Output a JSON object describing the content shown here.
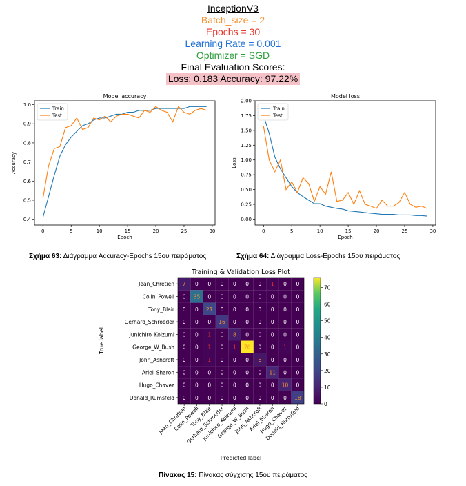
{
  "header": {
    "title": "InceptionV3",
    "batch": "Batch_size = 2",
    "epochs": "Epochs = 30",
    "lr": "Learning Rate = 0.001",
    "optimizer": "Optimizer = SGD",
    "final": "Final Evaluation Scores:",
    "scores": "Loss: 0.183  Accuracy: 97.22%",
    "colors": {
      "batch": "#f5922f",
      "epochs": "#e8332a",
      "lr": "#1f6fd6",
      "optimizer": "#2a9e38",
      "scores_bg": "#f4c2c6"
    }
  },
  "captions": {
    "fig63_label": "Σχήμα 63:",
    "fig63_text": " Διάγραμμα Accuracy-Epochs 15ου πειράματος",
    "fig64_label": "Σχήμα 64:",
    "fig64_text": " Διάγραμμα Loss-Epochs 15ου πειράματος",
    "table15_label": "Πίνακας 15:",
    "table15_text": " Πίνακας σύγχισης 15ου πειράματος"
  },
  "chart_data": [
    {
      "type": "line",
      "title": "Model accuracy",
      "xlabel": "Epoch",
      "ylabel": "Accuracy",
      "xlim": [
        -1.5,
        30.5
      ],
      "ylim": [
        0.37,
        1.02
      ],
      "xticks": [
        0,
        5,
        10,
        15,
        20,
        25,
        30
      ],
      "yticks": [
        0.4,
        0.5,
        0.6,
        0.7,
        0.8,
        0.9,
        1.0
      ],
      "legend": "top-left",
      "colors": [
        "#1f77b4",
        "#ff7f0e"
      ],
      "series": [
        {
          "name": "Train",
          "x": [
            0,
            1,
            2,
            3,
            4,
            5,
            6,
            7,
            8,
            9,
            10,
            11,
            12,
            13,
            14,
            15,
            16,
            17,
            18,
            19,
            20,
            21,
            22,
            23,
            24,
            25,
            26,
            27,
            28,
            29
          ],
          "values": [
            0.41,
            0.52,
            0.63,
            0.73,
            0.79,
            0.83,
            0.86,
            0.89,
            0.9,
            0.92,
            0.93,
            0.93,
            0.94,
            0.95,
            0.95,
            0.96,
            0.96,
            0.97,
            0.97,
            0.97,
            0.98,
            0.98,
            0.98,
            0.98,
            0.98,
            0.98,
            0.99,
            0.99,
            0.99,
            0.99
          ]
        },
        {
          "name": "Test",
          "x": [
            0,
            1,
            2,
            3,
            4,
            5,
            6,
            7,
            8,
            9,
            10,
            11,
            12,
            13,
            14,
            15,
            16,
            17,
            18,
            19,
            20,
            21,
            22,
            23,
            24,
            25,
            26,
            27,
            28,
            29
          ],
          "values": [
            0.51,
            0.68,
            0.77,
            0.78,
            0.88,
            0.89,
            0.93,
            0.87,
            0.88,
            0.93,
            0.92,
            0.94,
            0.91,
            0.94,
            0.95,
            0.95,
            0.94,
            0.93,
            0.97,
            0.96,
            0.99,
            0.97,
            0.96,
            0.91,
            0.99,
            0.96,
            0.95,
            0.97,
            0.98,
            0.97
          ]
        }
      ]
    },
    {
      "type": "line",
      "title": "Model loss",
      "xlabel": "Epoch",
      "ylabel": "Loss",
      "xlim": [
        -1.5,
        30.5
      ],
      "ylim": [
        -0.1,
        2.0
      ],
      "xticks": [
        0,
        5,
        10,
        15,
        20,
        25,
        30
      ],
      "yticks": [
        0.0,
        0.25,
        0.5,
        0.75,
        1.0,
        1.25,
        1.5,
        1.75,
        2.0
      ],
      "ytick_labels": [
        "0.00",
        "0.25",
        "0.50",
        "0.75",
        "1.00",
        "1.25",
        "1.50",
        "1.75",
        "2.00"
      ],
      "legend": "top-left",
      "colors": [
        "#1f77b4",
        "#ff7f0e"
      ],
      "series": [
        {
          "name": "Train",
          "x": [
            0,
            1,
            2,
            3,
            4,
            5,
            6,
            7,
            8,
            9,
            10,
            11,
            12,
            13,
            14,
            15,
            16,
            17,
            18,
            19,
            20,
            21,
            22,
            23,
            24,
            25,
            26,
            27,
            28,
            29
          ],
          "values": [
            1.75,
            1.45,
            1.05,
            0.85,
            0.7,
            0.55,
            0.45,
            0.38,
            0.32,
            0.26,
            0.26,
            0.22,
            0.2,
            0.18,
            0.17,
            0.14,
            0.13,
            0.12,
            0.11,
            0.1,
            0.09,
            0.08,
            0.08,
            0.08,
            0.07,
            0.07,
            0.07,
            0.06,
            0.06,
            0.05
          ]
        },
        {
          "name": "Test",
          "x": [
            0,
            1,
            2,
            3,
            4,
            5,
            6,
            7,
            8,
            9,
            10,
            11,
            12,
            13,
            14,
            15,
            16,
            17,
            18,
            19,
            20,
            21,
            22,
            23,
            24,
            25,
            26,
            27,
            28,
            29
          ],
          "values": [
            1.57,
            1.0,
            0.8,
            1.0,
            0.5,
            0.63,
            0.45,
            0.7,
            0.6,
            0.3,
            0.55,
            0.42,
            0.8,
            0.3,
            0.32,
            0.45,
            0.25,
            0.48,
            0.25,
            0.22,
            0.18,
            0.32,
            0.22,
            0.22,
            0.28,
            0.45,
            0.25,
            0.2,
            0.22,
            0.18
          ]
        }
      ]
    },
    {
      "type": "heatmap",
      "title": "Training & Validation Loss Plot",
      "xlabel": "Predicted label",
      "ylabel": "True label",
      "labels": [
        "Jean_Chretien",
        "Colin_Powell",
        "Tony_Blair",
        "Gerhard_Schroeder",
        "Junichiro_Koizumi",
        "George_W_Bush",
        "John_Ashcroft",
        "Ariel_Sharon",
        "Hugo_Chavez",
        "Donald_Rumsfeld"
      ],
      "matrix": [
        [
          7,
          0,
          0,
          0,
          0,
          0,
          0,
          1,
          0,
          0
        ],
        [
          0,
          35,
          0,
          0,
          0,
          0,
          0,
          0,
          0,
          0
        ],
        [
          0,
          0,
          21,
          0,
          0,
          0,
          0,
          0,
          0,
          0
        ],
        [
          0,
          0,
          0,
          16,
          0,
          0,
          0,
          0,
          0,
          0
        ],
        [
          0,
          0,
          1,
          0,
          8,
          0,
          0,
          0,
          0,
          0
        ],
        [
          0,
          0,
          1,
          0,
          1,
          76,
          0,
          0,
          1,
          0
        ],
        [
          0,
          0,
          1,
          0,
          0,
          0,
          6,
          0,
          0,
          0
        ],
        [
          0,
          0,
          0,
          0,
          0,
          0,
          0,
          11,
          0,
          0
        ],
        [
          0,
          0,
          0,
          0,
          0,
          0,
          0,
          0,
          10,
          0
        ],
        [
          0,
          0,
          0,
          0,
          0,
          0,
          0,
          0,
          0,
          18
        ]
      ],
      "colorbar_ticks": [
        0,
        10,
        20,
        30,
        40,
        50,
        60,
        70
      ],
      "colorbar_max": 76,
      "colormap": "viridis",
      "text_colors": {
        "zero": "#ffffff",
        "small": "#e8332a",
        "large": "#f5922f"
      }
    }
  ]
}
